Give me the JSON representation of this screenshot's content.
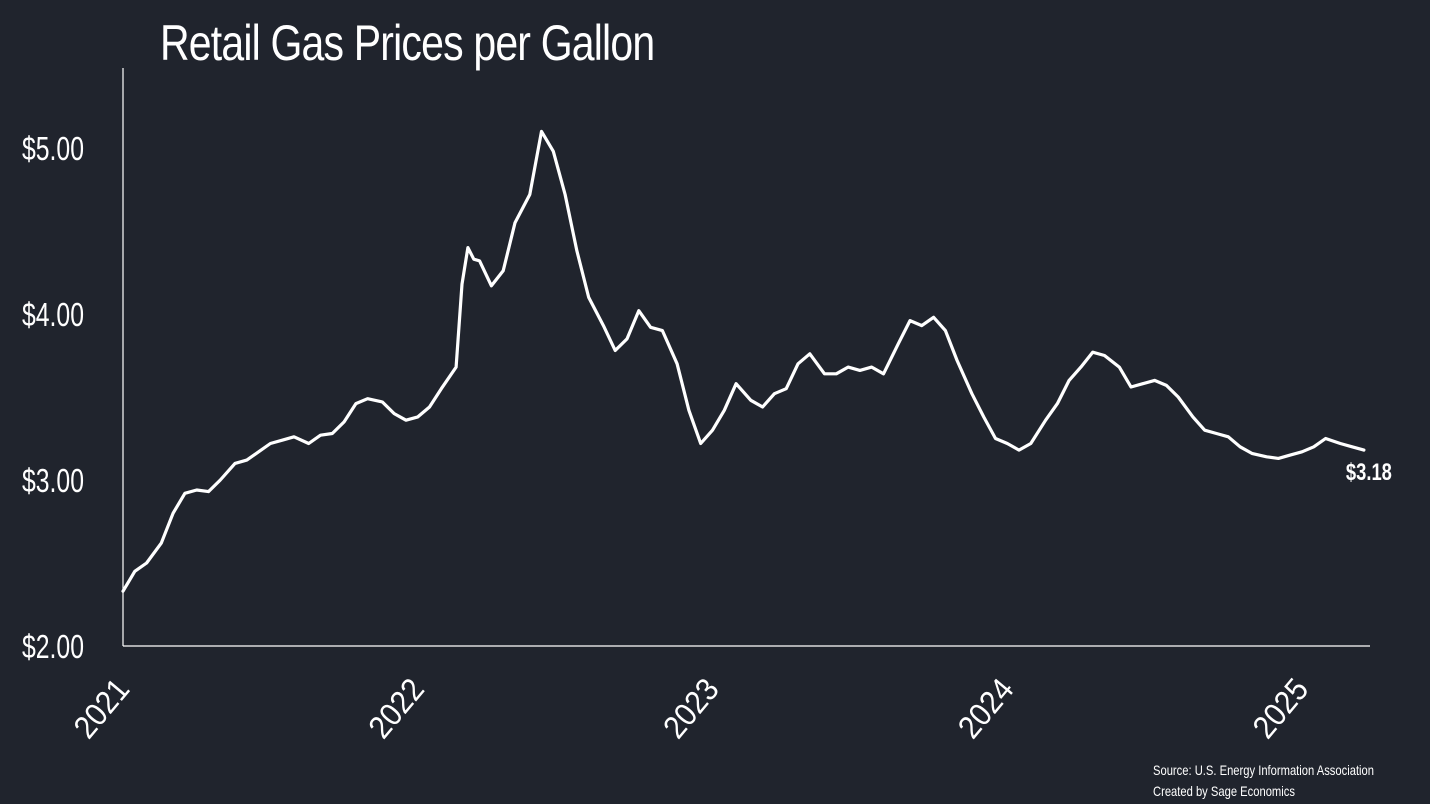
{
  "chart_data": {
    "type": "line",
    "title": "Retail Gas Prices per Gallon",
    "xlabel": "",
    "ylabel": "",
    "ylim": [
      2.0,
      5.5
    ],
    "xlim": [
      2021.0,
      2025.25
    ],
    "yticks": [
      2.0,
      3.0,
      4.0,
      5.0
    ],
    "ytick_labels": [
      "$2.00",
      "$3.00",
      "$4.00",
      "$5.00"
    ],
    "xticks": [
      2021,
      2022,
      2023,
      2024,
      2025
    ],
    "xtick_labels": [
      "2021",
      "2022",
      "2023",
      "2024",
      "2025"
    ],
    "grid": false,
    "line_color": "#ffffff",
    "background_color": "#20242d",
    "end_label": "$3.18",
    "series": [
      {
        "points": [
          [
            2021.0,
            2.33
          ],
          [
            2021.04,
            2.45
          ],
          [
            2021.08,
            2.5
          ],
          [
            2021.13,
            2.62
          ],
          [
            2021.17,
            2.8
          ],
          [
            2021.21,
            2.92
          ],
          [
            2021.25,
            2.94
          ],
          [
            2021.29,
            2.93
          ],
          [
            2021.33,
            3.0
          ],
          [
            2021.38,
            3.1
          ],
          [
            2021.42,
            3.12
          ],
          [
            2021.46,
            3.17
          ],
          [
            2021.5,
            3.22
          ],
          [
            2021.54,
            3.24
          ],
          [
            2021.58,
            3.26
          ],
          [
            2021.63,
            3.22
          ],
          [
            2021.67,
            3.27
          ],
          [
            2021.71,
            3.28
          ],
          [
            2021.75,
            3.35
          ],
          [
            2021.79,
            3.46
          ],
          [
            2021.83,
            3.49
          ],
          [
            2021.88,
            3.47
          ],
          [
            2021.92,
            3.4
          ],
          [
            2021.96,
            3.36
          ],
          [
            2022.0,
            3.38
          ],
          [
            2022.04,
            3.44
          ],
          [
            2022.08,
            3.55
          ],
          [
            2022.13,
            3.68
          ],
          [
            2022.15,
            4.18
          ],
          [
            2022.17,
            4.4
          ],
          [
            2022.19,
            4.33
          ],
          [
            2022.21,
            4.32
          ],
          [
            2022.25,
            4.17
          ],
          [
            2022.29,
            4.26
          ],
          [
            2022.33,
            4.55
          ],
          [
            2022.38,
            4.72
          ],
          [
            2022.42,
            5.1
          ],
          [
            2022.46,
            4.98
          ],
          [
            2022.5,
            4.72
          ],
          [
            2022.54,
            4.38
          ],
          [
            2022.58,
            4.1
          ],
          [
            2022.63,
            3.93
          ],
          [
            2022.67,
            3.78
          ],
          [
            2022.71,
            3.85
          ],
          [
            2022.75,
            4.02
          ],
          [
            2022.79,
            3.92
          ],
          [
            2022.83,
            3.9
          ],
          [
            2022.88,
            3.7
          ],
          [
            2022.92,
            3.42
          ],
          [
            2022.96,
            3.22
          ],
          [
            2023.0,
            3.3
          ],
          [
            2023.04,
            3.42
          ],
          [
            2023.08,
            3.58
          ],
          [
            2023.13,
            3.48
          ],
          [
            2023.17,
            3.44
          ],
          [
            2023.21,
            3.52
          ],
          [
            2023.25,
            3.55
          ],
          [
            2023.29,
            3.7
          ],
          [
            2023.33,
            3.76
          ],
          [
            2023.38,
            3.64
          ],
          [
            2023.42,
            3.64
          ],
          [
            2023.46,
            3.68
          ],
          [
            2023.5,
            3.66
          ],
          [
            2023.54,
            3.68
          ],
          [
            2023.58,
            3.64
          ],
          [
            2023.63,
            3.82
          ],
          [
            2023.67,
            3.96
          ],
          [
            2023.71,
            3.93
          ],
          [
            2023.75,
            3.98
          ],
          [
            2023.79,
            3.9
          ],
          [
            2023.83,
            3.72
          ],
          [
            2023.88,
            3.52
          ],
          [
            2023.92,
            3.38
          ],
          [
            2023.96,
            3.25
          ],
          [
            2024.0,
            3.22
          ],
          [
            2024.04,
            3.18
          ],
          [
            2024.08,
            3.22
          ],
          [
            2024.13,
            3.36
          ],
          [
            2024.17,
            3.46
          ],
          [
            2024.21,
            3.6
          ],
          [
            2024.25,
            3.68
          ],
          [
            2024.29,
            3.77
          ],
          [
            2024.33,
            3.75
          ],
          [
            2024.38,
            3.68
          ],
          [
            2024.42,
            3.56
          ],
          [
            2024.46,
            3.58
          ],
          [
            2024.5,
            3.6
          ],
          [
            2024.54,
            3.57
          ],
          [
            2024.58,
            3.5
          ],
          [
            2024.63,
            3.38
          ],
          [
            2024.67,
            3.3
          ],
          [
            2024.71,
            3.28
          ],
          [
            2024.75,
            3.26
          ],
          [
            2024.79,
            3.2
          ],
          [
            2024.83,
            3.16
          ],
          [
            2024.88,
            3.14
          ],
          [
            2024.92,
            3.13
          ],
          [
            2024.96,
            3.15
          ],
          [
            2025.0,
            3.17
          ],
          [
            2025.04,
            3.2
          ],
          [
            2025.08,
            3.25
          ],
          [
            2025.13,
            3.22
          ],
          [
            2025.17,
            3.2
          ],
          [
            2025.21,
            3.18
          ]
        ]
      }
    ]
  },
  "footer": {
    "source": "Source: U.S. Energy Information Association",
    "credit": "Created by Sage Economics"
  }
}
